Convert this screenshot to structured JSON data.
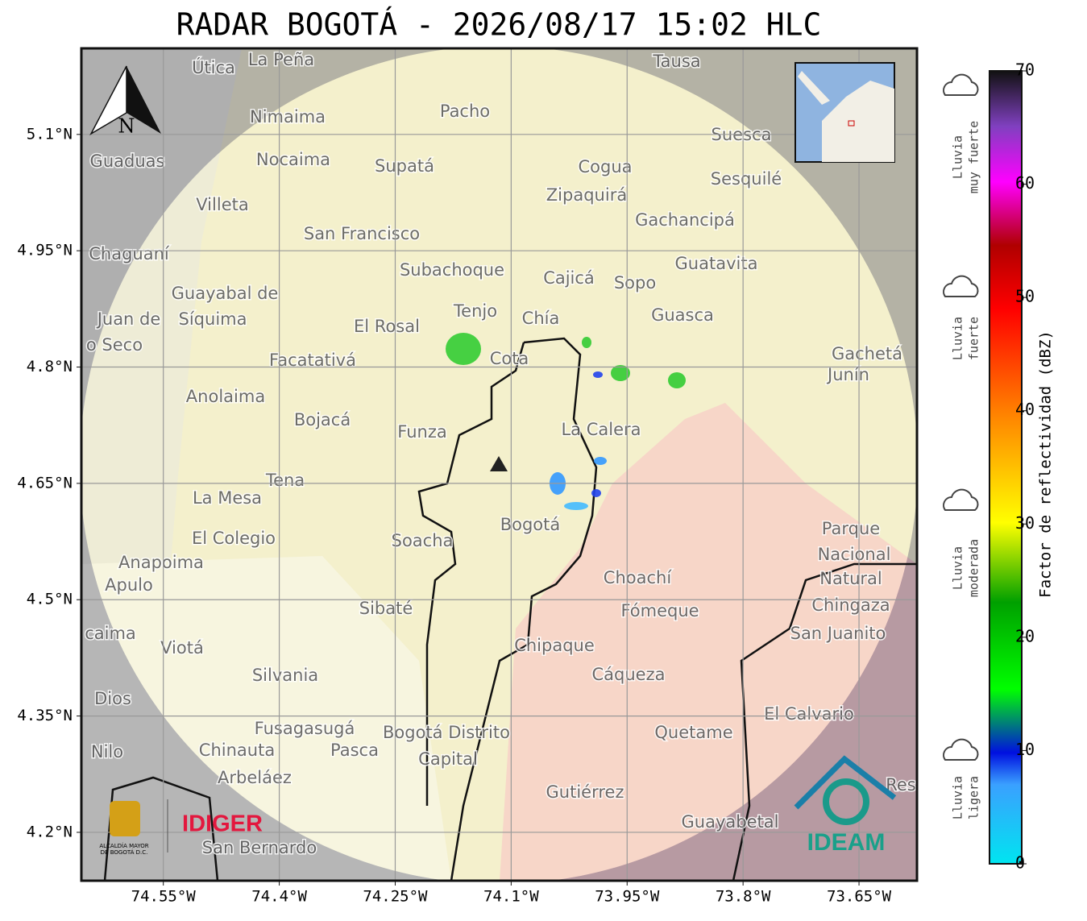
{
  "title": "RADAR BOGOTÁ - 2026/08/17 15:02 HLC",
  "map": {
    "xlim": [
      -74.656,
      -73.575
    ],
    "ylim": [
      4.1376,
      5.211
    ],
    "xticks": [
      {
        "value": -74.55,
        "label": "74.55°W"
      },
      {
        "value": -74.4,
        "label": "74.4°W"
      },
      {
        "value": -74.25,
        "label": "74.25°W"
      },
      {
        "value": -74.1,
        "label": "74.1°W"
      },
      {
        "value": -73.95,
        "label": "73.95°W"
      },
      {
        "value": -73.8,
        "label": "73.8°W"
      },
      {
        "value": -73.65,
        "label": "73.65°W"
      }
    ],
    "yticks": [
      {
        "value": 5.1,
        "label": "5.1°N"
      },
      {
        "value": 4.95,
        "label": "4.95°N"
      },
      {
        "value": 4.8,
        "label": "4.8°N"
      },
      {
        "value": 4.65,
        "label": "4.65°N"
      },
      {
        "value": 4.5,
        "label": "4.5°N"
      },
      {
        "value": 4.35,
        "label": "4.35°N"
      },
      {
        "value": 4.2,
        "label": "4.2°N"
      }
    ],
    "places": [
      "La Peña",
      "Útica",
      "Tausa",
      "Pacho",
      "Nimaima",
      "Guaduas",
      "Nocaima",
      "Supatá",
      "Cogua",
      "Suesca",
      "Sesquilé",
      "Villeta",
      "Zipaquirá",
      "Gachancipá",
      "San Francisco",
      "Chaguaní",
      "Guatavita",
      "Subachoque",
      "Cajicá",
      "Sopo",
      "Guayabal de",
      "Síquima",
      "Tenjo",
      "Chía",
      "Guasca",
      "Juan de",
      "El Rosal",
      "o Seco",
      "Cota",
      "Facatativá",
      "Gachetá",
      "Junín",
      "Anolaima",
      "Bojacá",
      "Funza",
      "La Calera",
      "Tena",
      "La Mesa",
      "Parque",
      "Bogotá",
      "Nacional",
      "El Colegio",
      "Soacha",
      "Anapoima",
      "Natural",
      "Apulo",
      "Choachí",
      "Chingaza",
      "Sibaté",
      "Fómeque",
      "San Juanito",
      "caima",
      "Viotá",
      "Chipaque",
      "Silvania",
      "Cáqueza",
      "Dios",
      "El Calvario",
      "Fusagasugá",
      "Bogotá Distrito",
      "Quetame",
      "Nilo",
      "Chinauta",
      "Pasca",
      "Capital",
      "Arbeláez",
      "Gutiérrez",
      "Res",
      "Guayabetal",
      "San Bernardo"
    ],
    "north": "N"
  },
  "colorbar": {
    "label": "Factor de reflectividad (dBZ)",
    "lim": [
      0,
      70
    ],
    "ticks": [
      0,
      10,
      20,
      30,
      40,
      50,
      60,
      70
    ],
    "classes": [
      [
        "Lluvia",
        "muy fuerte"
      ],
      [
        "Lluvia",
        "fuerte"
      ],
      [
        "Lluvia",
        "moderada"
      ],
      [
        "Lluvia",
        "ligera"
      ]
    ]
  },
  "logos": {
    "alcaldia": [
      "ALCALDÍA MAYOR",
      "DE BOGOTÁ D.C."
    ],
    "idiger": "IDIGER",
    "ideam": "IDEAM"
  }
}
